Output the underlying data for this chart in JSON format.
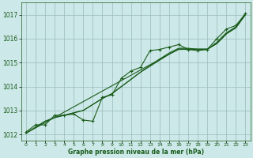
{
  "x": [
    0,
    1,
    2,
    3,
    4,
    5,
    6,
    7,
    8,
    9,
    10,
    11,
    12,
    13,
    14,
    15,
    16,
    17,
    18,
    19,
    20,
    21,
    22,
    23
  ],
  "line_spiky": [
    1012.1,
    1012.4,
    1012.4,
    1012.8,
    1012.8,
    1012.85,
    1012.6,
    1012.55,
    1013.55,
    1013.65,
    1014.35,
    1014.65,
    1014.8,
    1015.5,
    1015.55,
    1015.65,
    1015.75,
    1015.55,
    1015.5,
    1015.55,
    1016.0,
    1016.4,
    1016.55,
    1017.05
  ],
  "line_straight": [
    1012.05,
    1012.27,
    1012.49,
    1012.71,
    1012.93,
    1013.15,
    1013.37,
    1013.59,
    1013.81,
    1014.03,
    1014.25,
    1014.47,
    1014.69,
    1014.91,
    1015.13,
    1015.35,
    1015.57,
    1015.57,
    1015.57,
    1015.57,
    1015.79,
    1016.2,
    1016.5,
    1017.05
  ],
  "line_smooth1": [
    1012.05,
    1012.3,
    1012.55,
    1012.7,
    1012.8,
    1012.9,
    1013.0,
    1013.25,
    1013.5,
    1013.7,
    1014.0,
    1014.3,
    1014.6,
    1014.85,
    1015.1,
    1015.35,
    1015.55,
    1015.55,
    1015.55,
    1015.55,
    1015.8,
    1016.2,
    1016.45,
    1017.0
  ],
  "line_smooth2": [
    1012.05,
    1012.3,
    1012.55,
    1012.7,
    1012.8,
    1012.9,
    1013.0,
    1013.25,
    1013.5,
    1013.7,
    1014.0,
    1014.3,
    1014.6,
    1014.88,
    1015.15,
    1015.4,
    1015.6,
    1015.6,
    1015.55,
    1015.55,
    1015.85,
    1016.25,
    1016.48,
    1017.02
  ],
  "background_color": "#cce8e8",
  "grid_color": "#99bbbb",
  "line_color": "#1a5c1a",
  "ylim_min": 1011.75,
  "ylim_max": 1017.5,
  "yticks": [
    1012,
    1013,
    1014,
    1015,
    1016,
    1017
  ],
  "xlabel": "Graphe pression niveau de la mer (hPa)",
  "marker": "+",
  "linewidth": 0.8,
  "markersize": 3.5
}
